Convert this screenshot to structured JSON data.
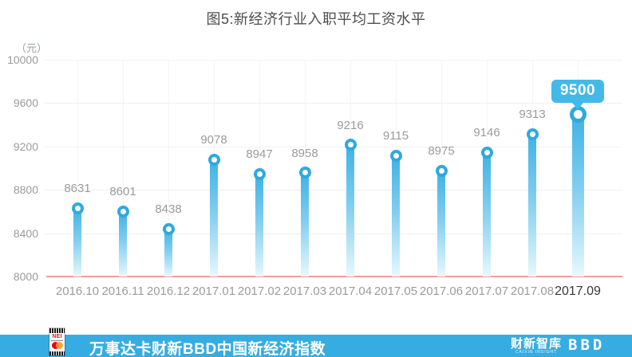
{
  "title": "图5:新经济行业入职平均工资水平",
  "chart_data": {
    "type": "bar",
    "title": "图5:新经济行业入职平均工资水平",
    "unit_label": "（元）",
    "xlabel": "",
    "ylabel": "（元）",
    "categories": [
      "2016.10",
      "2016.11",
      "2016.12",
      "2017.01",
      "2017.02",
      "2017.03",
      "2017.04",
      "2017.05",
      "2017.06",
      "2017.07",
      "2017.08",
      "2017.09"
    ],
    "values": [
      8631,
      8601,
      8438,
      9078,
      8947,
      8958,
      9216,
      9115,
      8975,
      9146,
      9313,
      9500
    ],
    "highlight_index": 11,
    "yticks": [
      8000,
      8400,
      8800,
      9200,
      9600,
      10000
    ],
    "ylim": [
      8000,
      10000
    ],
    "grid": true,
    "legend": "none",
    "colors": {
      "bar_top": "#3eb2e5",
      "bar_bottom": "#e9f8fd",
      "marker_ring": "#2ea9e0",
      "callout_bg": "#43b9e8",
      "baseline_red": "#ef9e99",
      "gridline": "#f0f0f0",
      "value_label": "#9b9b9b",
      "tick_label": "#9b9b9b",
      "highlight_tick_label": "#383838"
    }
  },
  "footer": {
    "bar_color": "#36ade2",
    "title": "万事达卡财新BBD中国新经济指数",
    "nei_logo_text": "NEI",
    "caixin_logo_text": "财新智库",
    "caixin_logo_subtext": "CAIXIN INSIGHT",
    "bbd_logo_text": "BBD"
  }
}
